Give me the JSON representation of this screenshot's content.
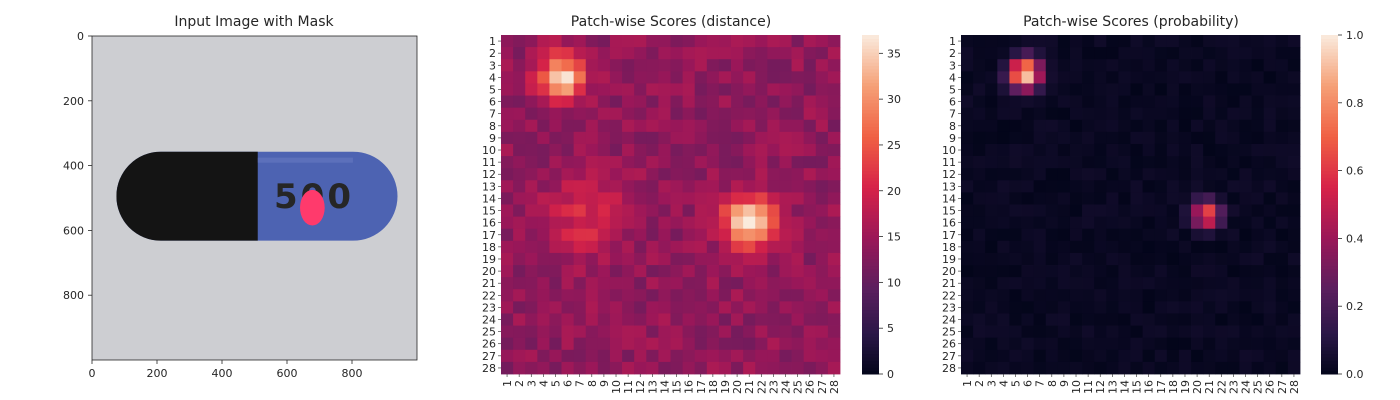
{
  "figure": {
    "background": "#ffffff",
    "text_color": "#262626",
    "colormap": "rocket"
  },
  "chart_data": [
    {
      "type": "image",
      "title": "Input Image with Mask",
      "xlim": [
        0,
        1000
      ],
      "ylim": [
        1000,
        0
      ],
      "xticks": [
        0,
        200,
        400,
        600,
        800
      ],
      "yticks": [
        0,
        200,
        400,
        600,
        800
      ],
      "image_content": {
        "background_color": "#cdced2",
        "capsule": {
          "span_x": [
            75,
            940
          ],
          "span_y": [
            357,
            632
          ],
          "dark_half_color": "#141414",
          "blue_half_color": "#4d63b2",
          "divide_x": 510
        },
        "printed_text": "500",
        "printed_text_color": "#a3a8c1",
        "mask": {
          "center": [
            678,
            530
          ],
          "radius": [
            38,
            55
          ],
          "color": "#ff3a6c"
        }
      }
    },
    {
      "type": "heatmap",
      "title": "Patch-wise Scores (distance)",
      "rows": 28,
      "cols": 28,
      "row_labels": [
        "1",
        "2",
        "3",
        "4",
        "5",
        "6",
        "7",
        "8",
        "9",
        "10",
        "11",
        "12",
        "13",
        "14",
        "15",
        "16",
        "17",
        "18",
        "19",
        "20",
        "21",
        "22",
        "23",
        "24",
        "25",
        "26",
        "27",
        "28"
      ],
      "col_labels": [
        "1",
        "2",
        "3",
        "4",
        "5",
        "6",
        "7",
        "8",
        "9",
        "10",
        "11",
        "12",
        "13",
        "14",
        "15",
        "16",
        "17",
        "18",
        "19",
        "20",
        "21",
        "22",
        "23",
        "24",
        "25",
        "26",
        "27",
        "28"
      ],
      "colorbar": {
        "vmin": 0,
        "vmax": 37,
        "ticks": [
          0,
          5,
          10,
          15,
          20,
          25,
          30,
          35
        ]
      },
      "base_value": 14,
      "noise_amplitude": 2.5,
      "hotspots": [
        {
          "row": 4,
          "col": 5.5,
          "peak": 36,
          "sigma": 1.3
        },
        {
          "row": 16,
          "col": 21,
          "peak": 37,
          "sigma": 1.5
        },
        {
          "row": 15.5,
          "col": 7.5,
          "peak": 21,
          "sigma": 2.2
        }
      ]
    },
    {
      "type": "heatmap",
      "title": "Patch-wise Scores (probability)",
      "rows": 28,
      "cols": 28,
      "row_labels": [
        "1",
        "2",
        "3",
        "4",
        "5",
        "6",
        "7",
        "8",
        "9",
        "10",
        "11",
        "12",
        "13",
        "14",
        "15",
        "16",
        "17",
        "18",
        "19",
        "20",
        "21",
        "22",
        "23",
        "24",
        "25",
        "26",
        "27",
        "28"
      ],
      "col_labels": [
        "1",
        "2",
        "3",
        "4",
        "5",
        "6",
        "7",
        "8",
        "9",
        "10",
        "11",
        "12",
        "13",
        "14",
        "15",
        "16",
        "17",
        "18",
        "19",
        "20",
        "21",
        "22",
        "23",
        "24",
        "25",
        "26",
        "27",
        "28"
      ],
      "colorbar": {
        "vmin": 0,
        "vmax": 1.0,
        "ticks": [
          0.0,
          0.2,
          0.4,
          0.6,
          0.8,
          1.0
        ],
        "tick_labels": [
          "0.0",
          "0.2",
          "0.4",
          "0.6",
          "0.8",
          "1.0"
        ]
      },
      "base_value": 0.02,
      "noise_amplitude": 0.02,
      "hotspots": [
        {
          "row": 3.7,
          "col": 5.8,
          "peak": 1.0,
          "sigma": 0.9
        },
        {
          "row": 15.3,
          "col": 20.8,
          "peak": 0.7,
          "sigma": 0.8
        }
      ]
    }
  ]
}
